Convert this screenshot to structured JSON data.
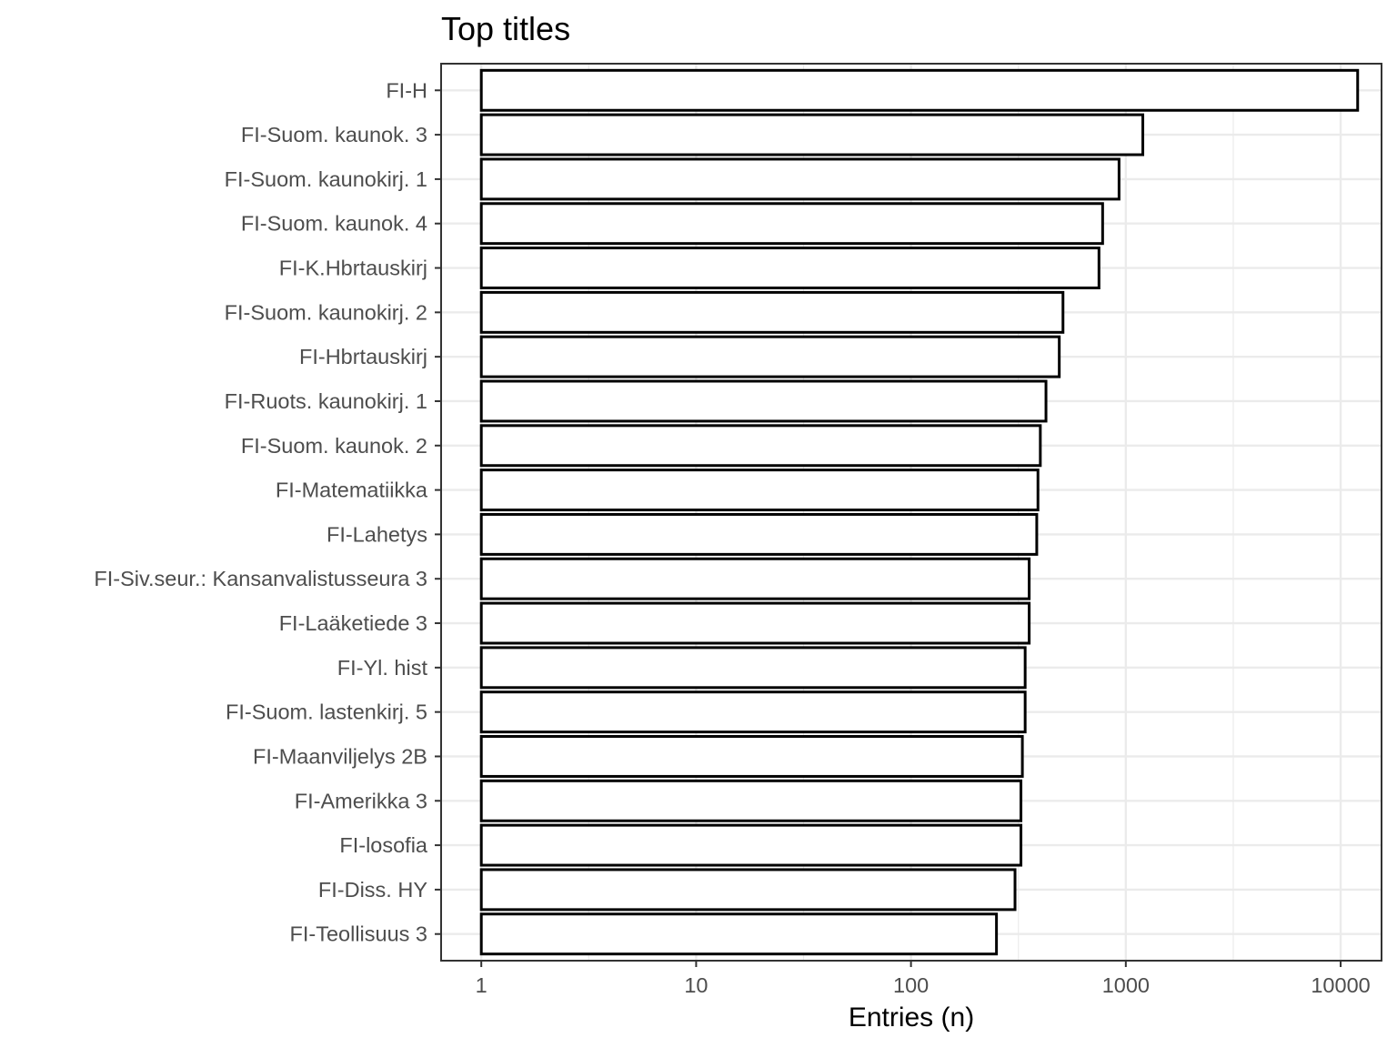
{
  "chart_data": {
    "type": "bar",
    "orientation": "horizontal",
    "title": "Top titles",
    "xlabel": "Entries (n)",
    "ylabel": "",
    "x_scale": "log10",
    "xlim": [
      0.65,
      15500
    ],
    "x_ticks": [
      1,
      10,
      100,
      1000,
      10000
    ],
    "x_tick_labels": [
      "1",
      "10",
      "100",
      "1000",
      "10000"
    ],
    "grid": true,
    "legend": "none",
    "bar_fill": "#ffffff",
    "bar_outline": "#000000",
    "categories": [
      "FI-H",
      "FI-Suom. kaunok. 3",
      "FI-Suom. kaunokirj. 1",
      "FI-Suom. kaunok. 4",
      "FI-K.Hbrtauskirj",
      "FI-Suom. kaunokirj. 2",
      "FI-Hbrtauskirj",
      "FI-Ruots. kaunokirj. 1",
      "FI-Suom. kaunok. 2",
      "FI-Matematiikka",
      "FI-Lahetys",
      "FI-Siv.seur.: Kansanvalistusseura 3",
      "FI-Laäketiede 3",
      "FI-Yl. hist",
      "FI-Suom. lastenkirj. 5",
      "FI-Maanviljelys 2B",
      "FI-Amerikka 3",
      "FI-losofia",
      "FI-Diss. HY",
      "FI-Teollisuus 3"
    ],
    "values": [
      12000,
      1200,
      930,
      780,
      750,
      510,
      490,
      425,
      400,
      390,
      385,
      355,
      355,
      340,
      340,
      330,
      325,
      325,
      305,
      250
    ]
  }
}
